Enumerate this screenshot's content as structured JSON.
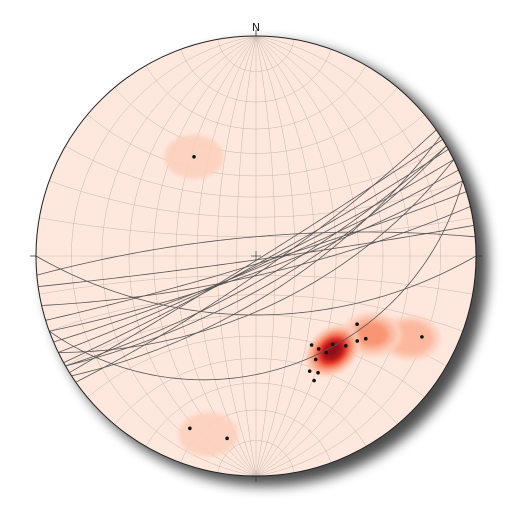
{
  "diagram": {
    "type": "stereonet",
    "north_label": "N",
    "colors": {
      "background": "#fee8de",
      "grid": "#c9b6ad",
      "great_circle": "#555555",
      "pole": "#111111",
      "outline": "#222222",
      "density_levels": [
        "#fcd0bd",
        "#fbb59b",
        "#f8926f",
        "#f1654c",
        "#dd2a25",
        "#b41219",
        "#8a0b12"
      ]
    },
    "great_circles": [
      {
        "strike": 58,
        "dip": 88
      },
      {
        "strike": 61,
        "dip": 86
      },
      {
        "strike": 55,
        "dip": 82
      },
      {
        "strike": 64,
        "dip": 85
      },
      {
        "strike": 60,
        "dip": 78
      },
      {
        "strike": 67,
        "dip": 84
      },
      {
        "strike": 60,
        "dip": 74
      },
      {
        "strike": 70,
        "dip": 82
      },
      {
        "strike": 57,
        "dip": 70
      },
      {
        "strike": 73,
        "dip": 86
      },
      {
        "strike": 77,
        "dip": 80
      },
      {
        "strike": 82,
        "dip": 88
      },
      {
        "strike": 64,
        "dip": 64
      },
      {
        "strike": 90,
        "dip": 60
      },
      {
        "strike": 265,
        "dip": 80
      },
      {
        "strike": 70,
        "dip": 35
      }
    ],
    "poles": [
      {
        "trend": 328,
        "plunge": 34
      },
      {
        "trend": 116,
        "plunge": 10
      },
      {
        "trend": 127,
        "plunge": 26
      },
      {
        "trend": 124,
        "plunge": 32
      },
      {
        "trend": 130,
        "plunge": 28
      },
      {
        "trend": 135,
        "plunge": 30
      },
      {
        "trend": 139,
        "plunge": 34
      },
      {
        "trend": 144,
        "plunge": 33
      },
      {
        "trend": 146,
        "plunge": 36
      },
      {
        "trend": 148,
        "plunge": 39
      },
      {
        "trend": 150,
        "plunge": 33
      },
      {
        "trend": 152,
        "plunge": 28
      },
      {
        "trend": 155,
        "plunge": 30
      },
      {
        "trend": 155,
        "plunge": 26
      },
      {
        "trend": 189,
        "plunge": 10
      },
      {
        "trend": 201,
        "plunge": 10
      }
    ],
    "density_contours": [
      {
        "trend": 328,
        "plunge": 34,
        "levels": 1
      },
      {
        "trend": 195,
        "plunge": 10,
        "levels": 1
      },
      {
        "trend": 118,
        "plunge": 13,
        "levels": 2
      },
      {
        "trend": 124,
        "plunge": 25,
        "levels": 3
      },
      {
        "trend": 141,
        "plunge": 32,
        "levels": 7
      }
    ]
  }
}
